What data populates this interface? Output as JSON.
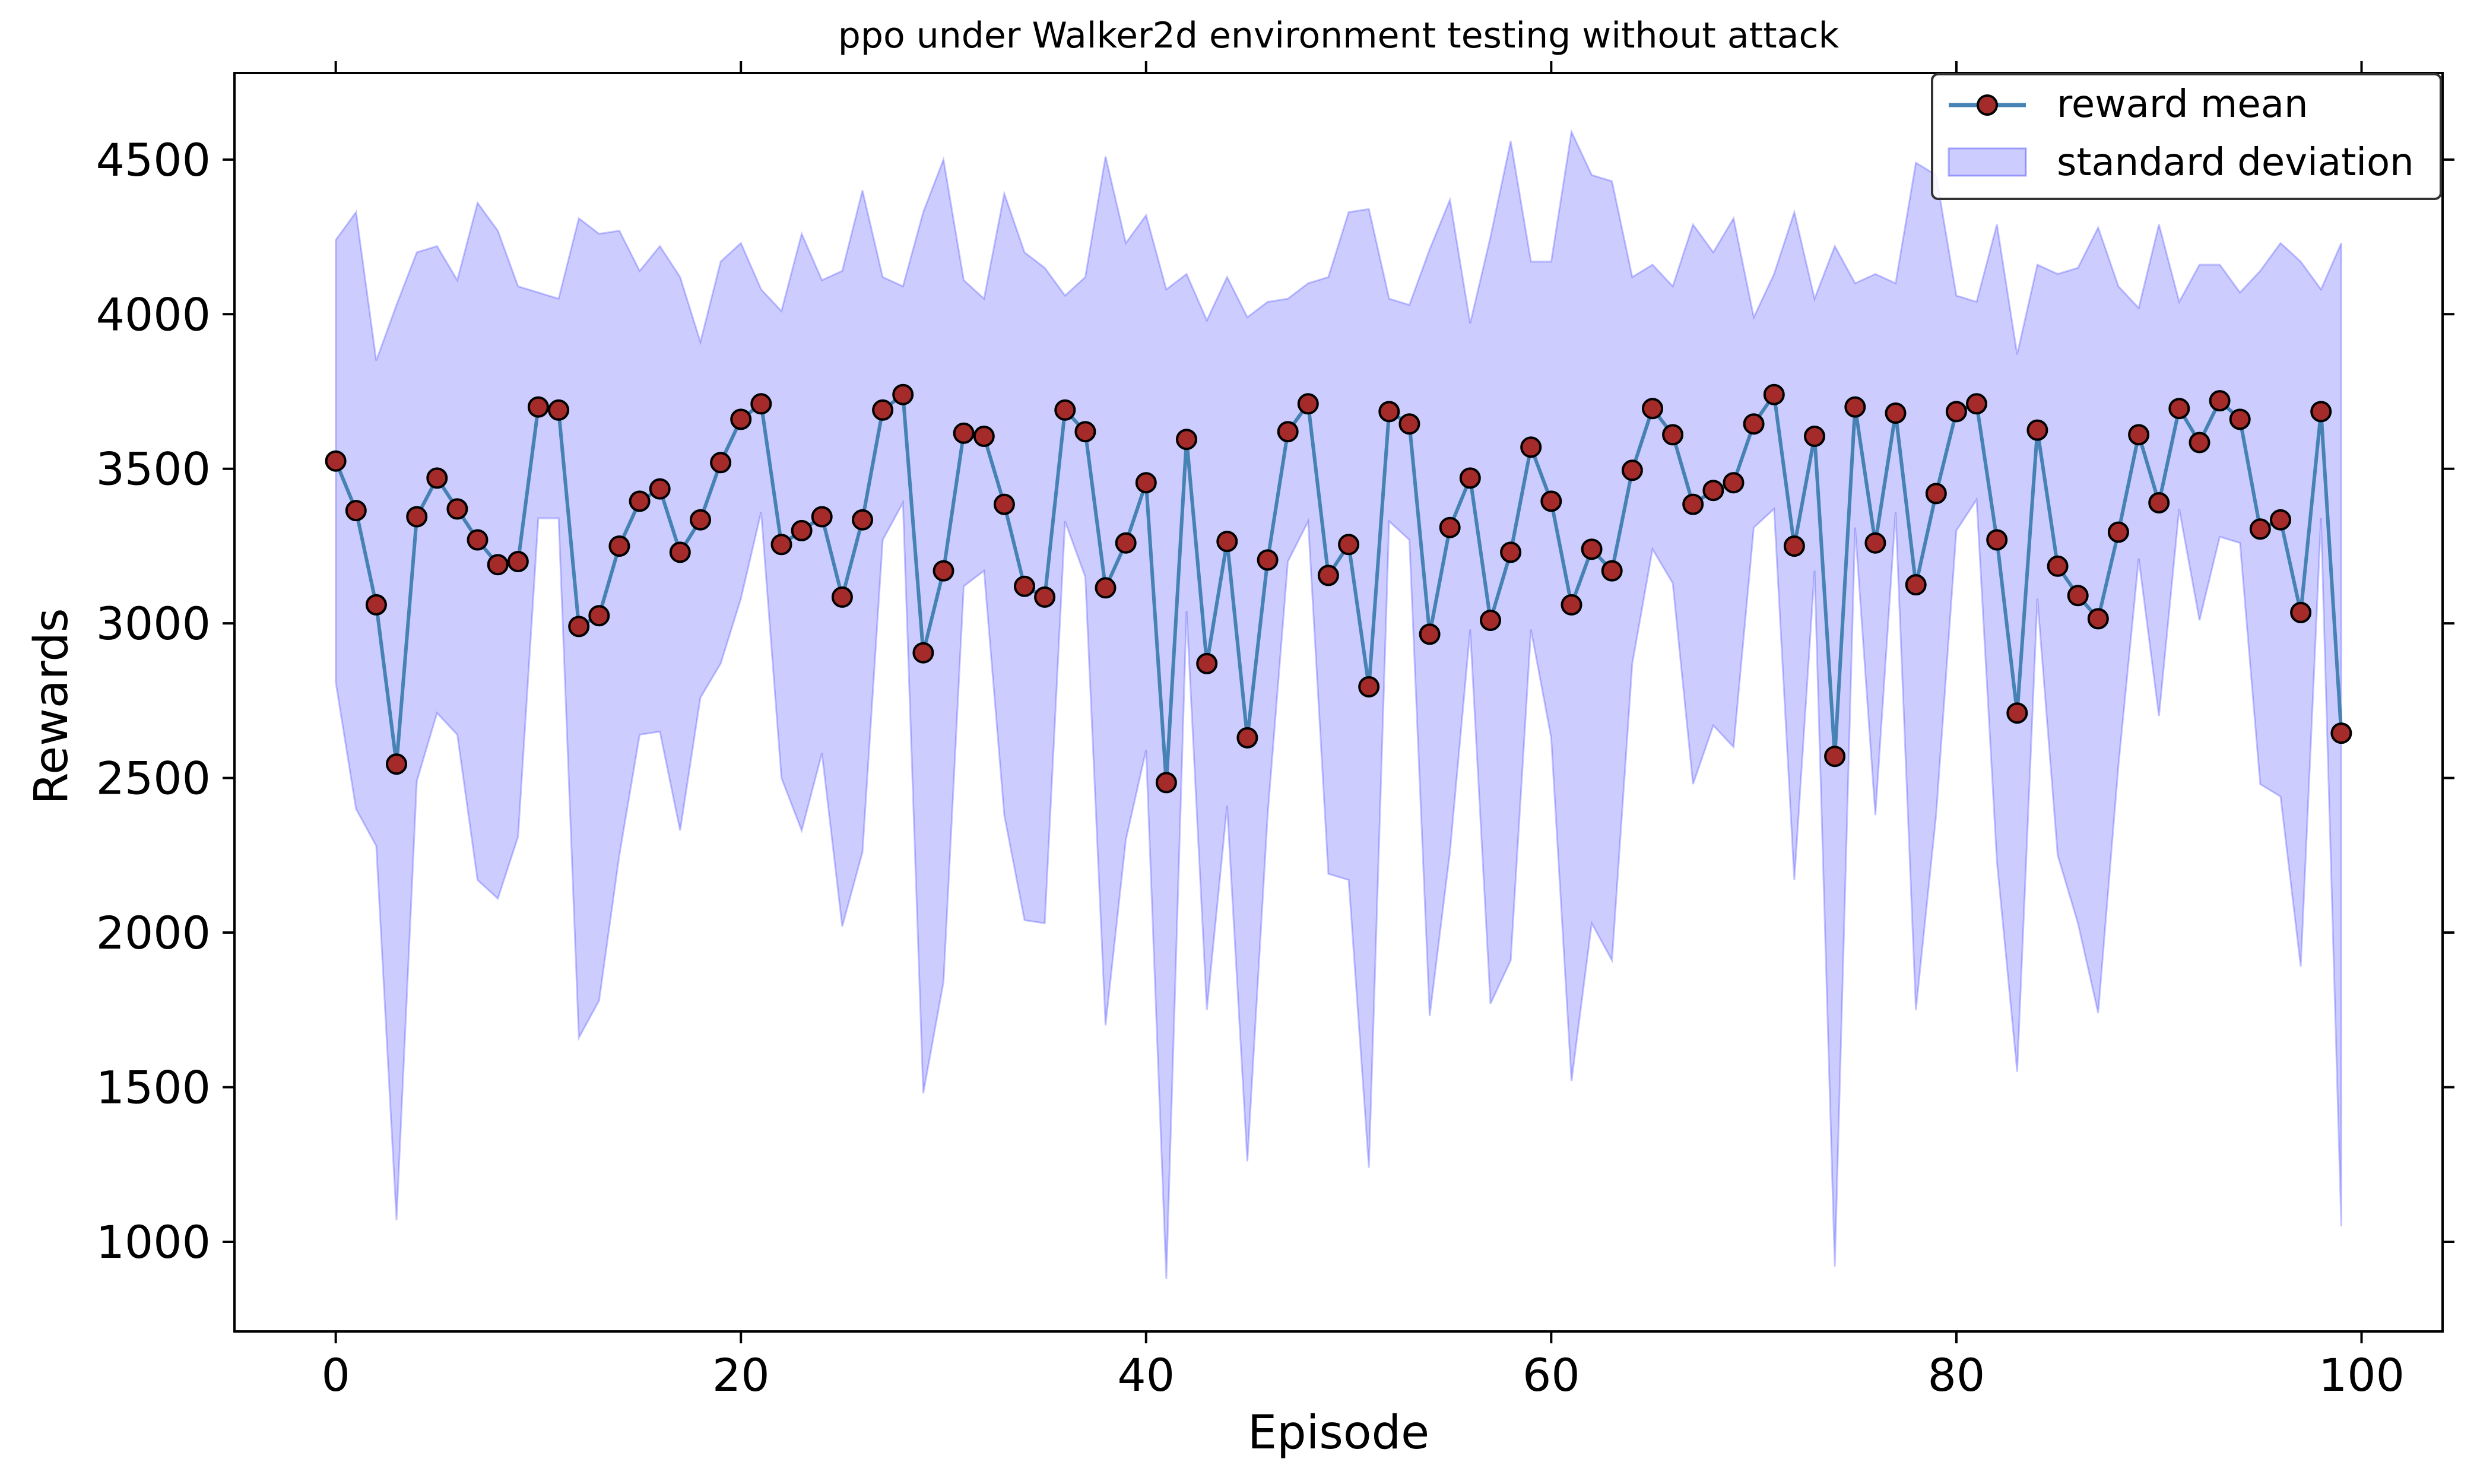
{
  "chart_data": {
    "type": "line",
    "title": "ppo under Walker2d environment testing without attack",
    "xlabel": "Episode",
    "ylabel": "Rewards",
    "xlim": [
      -5,
      104
    ],
    "ylim": [
      710,
      4780
    ],
    "xticks": [
      0,
      20,
      40,
      60,
      80,
      100
    ],
    "yticks": [
      1000,
      1500,
      2000,
      2500,
      3000,
      3500,
      4000,
      4500
    ],
    "grid": false,
    "legend_position": "top-right",
    "colors": {
      "line": "#4682b4",
      "marker_fill": "#a52a2a",
      "marker_edge": "#000000",
      "band": "#0000ff"
    },
    "x": [
      0,
      1,
      2,
      3,
      4,
      5,
      6,
      7,
      8,
      9,
      10,
      11,
      12,
      13,
      14,
      15,
      16,
      17,
      18,
      19,
      20,
      21,
      22,
      23,
      24,
      25,
      26,
      27,
      28,
      29,
      30,
      31,
      32,
      33,
      34,
      35,
      36,
      37,
      38,
      39,
      40,
      41,
      42,
      43,
      44,
      45,
      46,
      47,
      48,
      49,
      50,
      51,
      52,
      53,
      54,
      55,
      56,
      57,
      58,
      59,
      60,
      61,
      62,
      63,
      64,
      65,
      66,
      67,
      68,
      69,
      70,
      71,
      72,
      73,
      74,
      75,
      76,
      77,
      78,
      79,
      80,
      81,
      82,
      83,
      84,
      85,
      86,
      87,
      88,
      89,
      90,
      91,
      92,
      93,
      94,
      95,
      96,
      97,
      98,
      99
    ],
    "series": [
      {
        "name": "reward mean",
        "values": [
          3525,
          3365,
          3060,
          2545,
          3345,
          3470,
          3370,
          3270,
          3190,
          3200,
          3700,
          3690,
          2990,
          3025,
          3250,
          3395,
          3435,
          3230,
          3335,
          3520,
          3660,
          3710,
          3255,
          3300,
          3345,
          3085,
          3335,
          3690,
          3740,
          2905,
          3170,
          3615,
          3605,
          3385,
          3120,
          3085,
          3690,
          3620,
          3115,
          3260,
          3455,
          2485,
          3595,
          2870,
          3265,
          2630,
          3205,
          3620,
          3710,
          3155,
          3255,
          2795,
          3685,
          3645,
          2965,
          3310,
          3470,
          3010,
          3230,
          3570,
          3395,
          3060,
          3240,
          3170,
          3495,
          3695,
          3610,
          3385,
          3430,
          3455,
          3645,
          3740,
          3250,
          3605,
          2570,
          3700,
          3260,
          3680,
          3125,
          3420,
          3685,
          3710,
          3270,
          2710,
          3625,
          3185,
          3090,
          3015,
          3295,
          3610,
          3390,
          3695,
          3585,
          3720,
          3660,
          3305,
          3335,
          3035,
          3685,
          2645
        ]
      },
      {
        "name": "standard deviation",
        "upper": [
          4240,
          4330,
          3850,
          4030,
          4200,
          4220,
          4110,
          4360,
          4270,
          4090,
          4070,
          4050,
          4310,
          4260,
          4270,
          4140,
          4220,
          4120,
          3910,
          4170,
          4230,
          4080,
          4010,
          4260,
          4110,
          4140,
          4400,
          4120,
          4090,
          4330,
          4500,
          4110,
          4050,
          4390,
          4200,
          4150,
          4060,
          4120,
          4510,
          4230,
          4320,
          4080,
          4130,
          3980,
          4120,
          3990,
          4040,
          4050,
          4100,
          4120,
          4330,
          4340,
          4050,
          4030,
          4210,
          4370,
          3970,
          4250,
          4560,
          4170,
          4170,
          4590,
          4450,
          4430,
          4120,
          4160,
          4090,
          4290,
          4200,
          4310,
          3990,
          4130,
          4330,
          4050,
          4220,
          4100,
          4130,
          4100,
          4490,
          4450,
          4060,
          4040,
          4290,
          3870,
          4160,
          4130,
          4150,
          4280,
          4090,
          4020,
          4290,
          4040,
          4160,
          4160,
          4070,
          4140,
          4230,
          4170,
          4080,
          4230
        ],
        "lower": [
          2810,
          2400,
          2280,
          1070,
          2490,
          2710,
          2640,
          2170,
          2110,
          2310,
          3340,
          3340,
          1660,
          1780,
          2250,
          2640,
          2650,
          2330,
          2760,
          2870,
          3080,
          3360,
          2500,
          2330,
          2580,
          2020,
          2260,
          3270,
          3390,
          1480,
          1840,
          3120,
          3170,
          2380,
          2040,
          2030,
          3330,
          3150,
          1700,
          2300,
          2590,
          880,
          3040,
          1750,
          2410,
          1260,
          2380,
          3200,
          3330,
          2190,
          2170,
          1240,
          3330,
          3270,
          1730,
          2260,
          2980,
          1770,
          1910,
          2980,
          2630,
          1520,
          2030,
          1910,
          2870,
          3240,
          3130,
          2480,
          2670,
          2600,
          3310,
          3370,
          2170,
          3170,
          920,
          3310,
          2380,
          3360,
          1750,
          2380,
          3300,
          3400,
          2230,
          1550,
          3080,
          2250,
          2030,
          1740,
          2540,
          3210,
          2700,
          3370,
          3010,
          3280,
          3260,
          2480,
          2440,
          1890,
          3340,
          1050
        ]
      }
    ]
  }
}
